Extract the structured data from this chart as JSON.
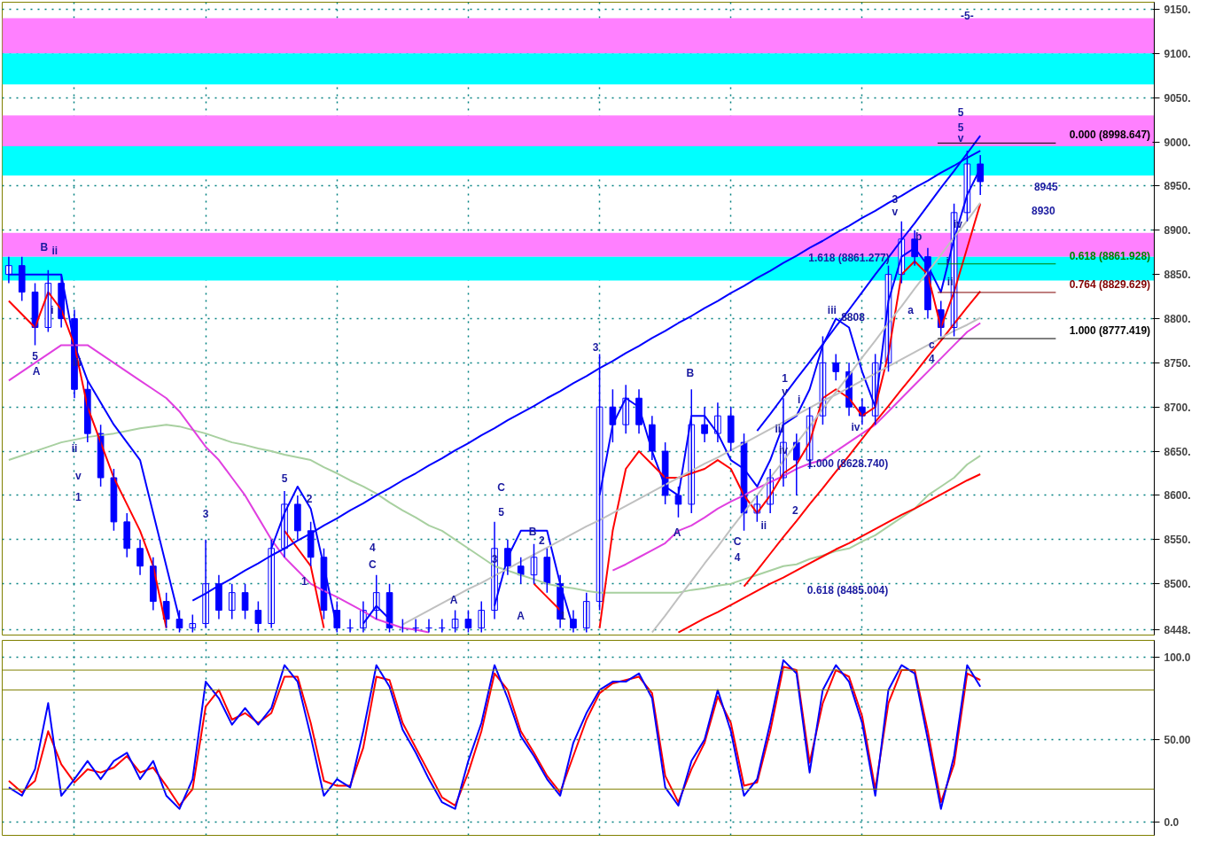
{
  "chart_data": [
    {
      "type": "candlestick",
      "color": "#0000ff",
      "grid": true,
      "tick_labels": "y",
      "ylim": [
        8442,
        9158
      ],
      "yticks": [
        {
          "value": 8500,
          "label": "8500."
        },
        {
          "value": 8550,
          "label": "8550."
        },
        {
          "value": 8600,
          "label": "8600."
        },
        {
          "value": 8650,
          "label": "8650."
        },
        {
          "value": 8700,
          "label": "8700."
        },
        {
          "value": 8750,
          "label": "8750."
        },
        {
          "value": 8800,
          "label": "8800."
        },
        {
          "value": 8850,
          "label": "8850."
        },
        {
          "value": 8900,
          "label": "8900."
        },
        {
          "value": 8950,
          "label": "8950."
        },
        {
          "value": 9000,
          "label": "9000."
        },
        {
          "value": 9050,
          "label": "9050."
        },
        {
          "value": 9100,
          "label": "9100."
        },
        {
          "value": 9150,
          "label": "9150."
        },
        {
          "value": 8448,
          "label": "8448."
        }
      ],
      "categories": [
        null,
        null,
        null,
        null,
        null,
        null,
        null,
        null,
        null,
        null,
        null,
        null,
        null,
        null,
        null,
        null,
        null,
        null,
        null,
        null,
        null,
        null,
        null,
        null,
        null,
        null,
        null,
        null,
        null,
        null,
        null,
        null,
        null,
        null,
        null,
        null,
        null,
        null,
        null,
        null,
        null,
        null,
        null,
        null,
        null,
        null,
        null,
        null,
        null,
        null,
        null,
        null,
        null,
        null,
        null,
        null,
        null,
        null,
        null,
        null,
        null,
        null,
        null,
        null,
        null,
        null,
        null,
        null,
        null,
        null,
        null,
        null,
        null,
        null,
        null
      ],
      "ohlc": [
        [
          8850,
          8870,
          8840,
          8860
        ],
        [
          8860,
          8870,
          8820,
          8830
        ],
        [
          8830,
          8840,
          8770,
          8790
        ],
        [
          8790,
          8855,
          8785,
          8840
        ],
        [
          8840,
          8850,
          8790,
          8800
        ],
        [
          8800,
          8810,
          8710,
          8720
        ],
        [
          8720,
          8730,
          8660,
          8670
        ],
        [
          8670,
          8680,
          8610,
          8620
        ],
        [
          8620,
          8630,
          8560,
          8570
        ],
        [
          8570,
          8580,
          8530,
          8540
        ],
        [
          8540,
          8550,
          8510,
          8520
        ],
        [
          8520,
          8530,
          8470,
          8480
        ],
        [
          8480,
          8490,
          8450,
          8460
        ],
        [
          8460,
          8470,
          8445,
          8450
        ],
        [
          8450,
          8465,
          8445,
          8455
        ],
        [
          8455,
          8550,
          8450,
          8500
        ],
        [
          8500,
          8510,
          8460,
          8470
        ],
        [
          8470,
          8500,
          8460,
          8490
        ],
        [
          8490,
          8500,
          8460,
          8470
        ],
        [
          8470,
          8480,
          8445,
          8455
        ],
        [
          8455,
          8550,
          8450,
          8540
        ],
        [
          8540,
          8605,
          8530,
          8590
        ],
        [
          8590,
          8600,
          8550,
          8560
        ],
        [
          8560,
          8570,
          8520,
          8530
        ],
        [
          8530,
          8540,
          8460,
          8470
        ],
        [
          8470,
          8480,
          8445,
          8450
        ],
        [
          8450,
          8460,
          8445,
          8450
        ],
        [
          8450,
          8480,
          8445,
          8470
        ],
        [
          8470,
          8510,
          8460,
          8490
        ],
        [
          8490,
          8500,
          8445,
          8450
        ],
        [
          8450,
          8460,
          8445,
          8450
        ],
        [
          8450,
          8460,
          8445,
          8450
        ],
        [
          8450,
          8460,
          8445,
          8450
        ],
        [
          8450,
          8460,
          8445,
          8450
        ],
        [
          8450,
          8470,
          8445,
          8460
        ],
        [
          8460,
          8470,
          8445,
          8450
        ],
        [
          8450,
          8480,
          8445,
          8470
        ],
        [
          8470,
          8570,
          8460,
          8540
        ],
        [
          8540,
          8550,
          8510,
          8520
        ],
        [
          8520,
          8530,
          8500,
          8510
        ],
        [
          8510,
          8545,
          8500,
          8530
        ],
        [
          8530,
          8540,
          8490,
          8500
        ],
        [
          8500,
          8510,
          8450,
          8460
        ],
        [
          8460,
          8470,
          8445,
          8450
        ],
        [
          8450,
          8490,
          8445,
          8480
        ],
        [
          8480,
          8760,
          8470,
          8700
        ],
        [
          8700,
          8720,
          8660,
          8680
        ],
        [
          8680,
          8725,
          8670,
          8710
        ],
        [
          8710,
          8720,
          8670,
          8680
        ],
        [
          8680,
          8690,
          8640,
          8650
        ],
        [
          8650,
          8660,
          8590,
          8600
        ],
        [
          8600,
          8610,
          8575,
          8590
        ],
        [
          8590,
          8720,
          8580,
          8680
        ],
        [
          8680,
          8700,
          8660,
          8670
        ],
        [
          8670,
          8705,
          8660,
          8690
        ],
        [
          8690,
          8700,
          8650,
          8660
        ],
        [
          8660,
          8670,
          8560,
          8580
        ],
        [
          8580,
          8600,
          8570,
          8590
        ],
        [
          8590,
          8630,
          8580,
          8620
        ],
        [
          8620,
          8710,
          8610,
          8660
        ],
        [
          8660,
          8670,
          8600,
          8640
        ],
        [
          8640,
          8700,
          8630,
          8690
        ],
        [
          8690,
          8780,
          8680,
          8750
        ],
        [
          8750,
          8760,
          8730,
          8740
        ],
        [
          8740,
          8750,
          8690,
          8700
        ],
        [
          8700,
          8710,
          8680,
          8690
        ],
        [
          8690,
          8760,
          8680,
          8750
        ],
        [
          8750,
          8860,
          8740,
          8850
        ],
        [
          8850,
          8910,
          8840,
          8890
        ],
        [
          8890,
          8900,
          8860,
          8870
        ],
        [
          8870,
          8880,
          8800,
          8810
        ],
        [
          8810,
          8820,
          8780,
          8790
        ],
        [
          8790,
          8930,
          8780,
          8920
        ],
        [
          8920,
          8990,
          8910,
          8975
        ],
        [
          8975,
          8985,
          8940,
          8955
        ]
      ],
      "series": [
        {
          "type": "line",
          "color": "#a8d0a0",
          "values": [
            8640,
            8645,
            8650,
            8655,
            8660,
            8663,
            8666,
            8668,
            8670,
            8673,
            8676,
            8678,
            8680,
            8678,
            8674,
            8670,
            8665,
            8660,
            8657,
            8653,
            8650,
            8646,
            8643,
            8640,
            8632,
            8625,
            8617,
            8610,
            8602,
            8592,
            8583,
            8575,
            8566,
            8560,
            8550,
            8540,
            8530,
            8520,
            8515,
            8510,
            8505,
            8500,
            8497,
            8495,
            8492,
            8490,
            8490,
            8490,
            8490,
            8490,
            8490,
            8490,
            8493,
            8495,
            8498,
            8500,
            8505,
            8510,
            8515,
            8520,
            8522,
            8528,
            8532,
            8537,
            8540,
            8548,
            8555,
            8565,
            8575,
            8585,
            8600,
            8610,
            8620,
            8635,
            8645
          ]
        },
        {
          "type": "line",
          "color": "#e040e0",
          "values": [
            8730,
            8740,
            8750,
            8760,
            8770,
            8770,
            8770,
            8760,
            8750,
            8740,
            8730,
            8720,
            8710,
            8695,
            8675,
            8655,
            8640,
            8620,
            8600,
            8575,
            8550,
            8530,
            8515,
            8500,
            8492,
            8485,
            8477,
            8469,
            8460,
            8455,
            8450,
            8448,
            8445,
            null,
            null,
            null,
            null,
            null,
            null,
            null,
            null,
            null,
            null,
            null,
            null,
            null,
            8515,
            8522,
            8530,
            8538,
            8546,
            8560,
            8566,
            8575,
            8585,
            8593,
            8600,
            8608,
            8615,
            8622,
            8630,
            8636,
            8640,
            8650,
            8660,
            8670,
            8680,
            8695,
            8710,
            8725,
            8740,
            8755,
            8770,
            8785,
            8795
          ]
        },
        {
          "type": "line",
          "color": "#0000ff",
          "values": [
            8850,
            8850,
            8850,
            8850,
            8850,
            8770,
            8730,
            8705,
            8680,
            8660,
            8640,
            8580,
            8520,
            8460,
            null,
            null,
            null,
            null,
            null,
            null,
            8540,
            8580,
            8610,
            8585,
            8520,
            8450,
            null,
            8455,
            8475,
            8460,
            null,
            null,
            null,
            null,
            null,
            null,
            null,
            8475,
            8530,
            8560,
            8560,
            8560,
            8500,
            8450,
            null,
            8600,
            8680,
            8710,
            8700,
            8650,
            8610,
            8600,
            8690,
            8690,
            8670,
            8640,
            8630,
            8610,
            8640,
            8680,
            8690,
            8720,
            8770,
            8800,
            8790,
            8740,
            8700,
            8820,
            8870,
            8880,
            8860,
            8830,
            8890,
            8940,
            8970
          ]
        },
        {
          "type": "line",
          "color": "#ff0000",
          "values": [
            8820,
            8805,
            8790,
            8830,
            8810,
            8770,
            8700,
            8660,
            8620,
            8590,
            8560,
            8520,
            8450,
            null,
            null,
            null,
            null,
            null,
            null,
            null,
            null,
            8560,
            8540,
            8520,
            8450,
            null,
            null,
            null,
            null,
            null,
            null,
            null,
            null,
            null,
            null,
            null,
            null,
            null,
            null,
            null,
            8500,
            8485,
            8470,
            null,
            null,
            8450,
            8560,
            8630,
            8650,
            8635,
            8620,
            8620,
            8625,
            8630,
            8640,
            8630,
            8600,
            8580,
            8600,
            8625,
            8635,
            8660,
            8710,
            8720,
            8710,
            8690,
            8700,
            8760,
            8850,
            8865,
            8850,
            8790,
            8830,
            8880,
            8930
          ]
        },
        {
          "type": "line",
          "color": "#0000ff",
          "values": [
            null,
            null,
            null,
            null,
            null,
            null,
            null,
            null,
            null,
            null,
            null,
            null,
            null,
            null,
            8481,
            8489,
            8498,
            8506,
            8515,
            8523,
            8532,
            8540,
            8549,
            8557,
            8566,
            8574,
            8583,
            8591,
            8600,
            8608,
            8617,
            8625,
            8634,
            8642,
            8651,
            8659,
            8668,
            8676,
            8685,
            8693,
            8701,
            8710,
            8718,
            8727,
            8735,
            8744,
            8752,
            8761,
            8769,
            8778,
            8786,
            8795,
            8803,
            8812,
            8820,
            8829,
            8837,
            8846,
            8854,
            8863,
            8871,
            8880,
            8888,
            8897,
            8905,
            8914,
            8922,
            8931,
            8939,
            8948,
            8956,
            8965,
            8973,
            8982,
            8990
          ]
        },
        {
          "type": "line",
          "color": "#0000ff",
          "values": [
            null,
            null,
            null,
            null,
            null,
            null,
            null,
            null,
            null,
            null,
            null,
            null,
            null,
            null,
            null,
            null,
            null,
            null,
            null,
            null,
            null,
            null,
            null,
            null,
            null,
            null,
            null,
            null,
            null,
            null,
            null,
            null,
            null,
            null,
            null,
            null,
            null,
            null,
            null,
            null,
            null,
            null,
            null,
            null,
            null,
            null,
            null,
            null,
            null,
            null,
            null,
            null,
            null,
            null,
            null,
            null,
            null,
            8673,
            8692,
            8712,
            8732,
            8751,
            8771,
            8791,
            8810,
            8830,
            8850,
            8869,
            8889,
            8908,
            8928,
            8948,
            8967,
            8987,
            9007
          ]
        },
        {
          "type": "line",
          "color": "#ff0000",
          "values": [
            null,
            null,
            null,
            null,
            null,
            null,
            null,
            null,
            null,
            null,
            null,
            null,
            null,
            null,
            null,
            null,
            null,
            null,
            null,
            null,
            null,
            null,
            null,
            null,
            null,
            null,
            null,
            null,
            null,
            null,
            null,
            null,
            null,
            null,
            null,
            null,
            null,
            null,
            null,
            null,
            null,
            null,
            null,
            null,
            null,
            null,
            null,
            null,
            null,
            null,
            null,
            null,
            null,
            null,
            null,
            null,
            8497,
            8515,
            8534,
            8553,
            8571,
            8590,
            8608,
            8627,
            8645,
            8664,
            8683,
            8701,
            8720,
            8738,
            8757,
            8775,
            8794,
            8813,
            8831
          ]
        },
        {
          "type": "line",
          "color": "#ff0000",
          "values": [
            null,
            null,
            null,
            null,
            null,
            null,
            null,
            null,
            null,
            null,
            null,
            null,
            null,
            null,
            null,
            null,
            null,
            null,
            null,
            null,
            null,
            null,
            null,
            null,
            null,
            null,
            null,
            null,
            null,
            null,
            null,
            null,
            null,
            null,
            null,
            null,
            null,
            null,
            null,
            null,
            null,
            null,
            null,
            null,
            null,
            null,
            null,
            null,
            null,
            null,
            null,
            8445,
            8453,
            8461,
            8468,
            8476,
            8484,
            8492,
            8500,
            8507,
            8515,
            8523,
            8531,
            8539,
            8546,
            8554,
            8562,
            8570,
            8578,
            8585,
            8593,
            8601,
            8609,
            8617,
            8624
          ]
        },
        {
          "type": "line",
          "color": "#c0c0c0",
          "values": [
            null,
            null,
            null,
            null,
            null,
            null,
            null,
            null,
            null,
            null,
            null,
            null,
            null,
            null,
            null,
            null,
            null,
            null,
            null,
            null,
            null,
            null,
            null,
            null,
            null,
            null,
            null,
            null,
            null,
            null,
            null,
            null,
            null,
            null,
            null,
            null,
            null,
            null,
            null,
            null,
            null,
            null,
            null,
            null,
            null,
            null,
            null,
            null,
            null,
            8445,
            8464,
            8484,
            8503,
            8523,
            8542,
            8562,
            8581,
            8600,
            8620,
            8639,
            8659,
            8678,
            8698,
            8717,
            8736,
            8756,
            8775,
            8795,
            8814,
            8834,
            8853,
            8872,
            8892,
            8911,
            8931
          ]
        },
        {
          "type": "line",
          "color": "#c0c0c0",
          "values": [
            null,
            null,
            null,
            null,
            null,
            null,
            null,
            null,
            null,
            null,
            null,
            null,
            null,
            null,
            null,
            null,
            null,
            null,
            null,
            null,
            null,
            null,
            null,
            null,
            null,
            null,
            null,
            null,
            null,
            null,
            8454,
            8462,
            8470,
            8478,
            8486,
            8494,
            8501,
            8509,
            8517,
            8525,
            8533,
            8541,
            8549,
            8557,
            8565,
            8572,
            8580,
            8588,
            8596,
            8604,
            8612,
            8620,
            8628,
            8636,
            8643,
            8651,
            8659,
            8667,
            8675,
            8683,
            8691,
            8699,
            8707,
            8714,
            8722,
            8730,
            8738,
            8746,
            8754,
            8762,
            8770,
            8778,
            8786,
            8793,
            8801
          ]
        }
      ],
      "bands": [
        {
          "axis": "y",
          "from": 9100,
          "to": 9140,
          "color": "#ff80ff"
        },
        {
          "axis": "y",
          "from": 9065,
          "to": 9100,
          "color": "#00ffff"
        },
        {
          "axis": "y",
          "from": 8995,
          "to": 9030,
          "color": "#ff80ff"
        },
        {
          "axis": "y",
          "from": 8962,
          "to": 8995,
          "color": "#00ffff"
        },
        {
          "axis": "y",
          "from": 8870,
          "to": 8897,
          "color": "#ff80ff"
        },
        {
          "axis": "y",
          "from": 8843,
          "to": 8870,
          "color": "#00ffff"
        }
      ],
      "ref_lines": [
        {
          "axis": "y",
          "value": 8998.647,
          "label": "0.000 (8998.647)",
          "color": "#000000"
        },
        {
          "axis": "y",
          "value": 8861.928,
          "label": "0.618 (8861.928)",
          "color": "#008000"
        },
        {
          "axis": "y",
          "value": 8829.629,
          "label": "0.764 (8829.629)",
          "color": "#800000"
        },
        {
          "axis": "y",
          "value": 8777.419,
          "label": "1.000 (8777.419)",
          "color": "#000000"
        }
      ],
      "annotations": [
        "B",
        "A",
        "5",
        "ii",
        "i",
        "iii",
        "ii",
        "v",
        "1",
        "3",
        "5",
        "2",
        "1",
        "4",
        "C",
        "A",
        "C",
        "5",
        "3",
        "B",
        "2",
        "A",
        "1",
        "3",
        "B",
        "A",
        "C",
        "4",
        "ii",
        "2",
        "1",
        "v",
        "iii",
        "iv",
        "i",
        "iii",
        "8808",
        "iv",
        "3",
        "v",
        "b",
        "a",
        "c",
        "4",
        "i",
        "ii",
        "iv",
        "5",
        "5",
        "v",
        "-5-",
        "8945",
        "8930",
        "1.618 (8861.277)",
        "1.000 (8628.740)",
        "0.618 (8485.004)"
      ]
    },
    {
      "type": "line",
      "grid": true,
      "tick_labels": "y",
      "ylim": [
        -8,
        110
      ],
      "yticks": [
        {
          "value": 0,
          "label": "0.0"
        },
        {
          "value": 50,
          "label": "50.00"
        },
        {
          "value": 100,
          "label": "100.0"
        }
      ],
      "categories": [
        null,
        null,
        null,
        null,
        null,
        null,
        null,
        null,
        null,
        null,
        null,
        null,
        null,
        null,
        null,
        null,
        null,
        null,
        null,
        null,
        null,
        null,
        null,
        null,
        null,
        null,
        null,
        null,
        null,
        null,
        null,
        null,
        null,
        null,
        null,
        null,
        null,
        null,
        null,
        null,
        null,
        null,
        null,
        null,
        null,
        null,
        null,
        null,
        null,
        null,
        null,
        null,
        null,
        null,
        null,
        null,
        null,
        null,
        null,
        null,
        null,
        null,
        null,
        null,
        null,
        null,
        null,
        null,
        null,
        null,
        null,
        null,
        null,
        null,
        null
      ],
      "series": [
        {
          "color": "#ff0000",
          "values": [
            25,
            18,
            25,
            55,
            35,
            24,
            32,
            30,
            33,
            40,
            30,
            33,
            22,
            10,
            20,
            70,
            80,
            62,
            66,
            60,
            66,
            88,
            88,
            60,
            25,
            22,
            22,
            45,
            88,
            86,
            60,
            45,
            30,
            15,
            10,
            30,
            55,
            90,
            80,
            55,
            42,
            28,
            18,
            40,
            62,
            78,
            84,
            86,
            88,
            78,
            28,
            12,
            32,
            48,
            76,
            60,
            22,
            24,
            55,
            94,
            92,
            36,
            72,
            92,
            88,
            64,
            20,
            72,
            92,
            92,
            55,
            12,
            35,
            90,
            86
          ]
        },
        {
          "color": "#0000ff",
          "values": [
            21,
            16,
            32,
            72,
            16,
            26,
            37,
            26,
            37,
            42,
            26,
            37,
            16,
            8,
            26,
            85,
            75,
            59,
            69,
            59,
            69,
            95,
            85,
            52,
            16,
            26,
            21,
            55,
            95,
            82,
            56,
            42,
            26,
            12,
            8,
            37,
            60,
            95,
            75,
            52,
            40,
            26,
            16,
            48,
            66,
            80,
            85,
            85,
            90,
            75,
            21,
            10,
            37,
            50,
            80,
            55,
            16,
            26,
            60,
            98,
            90,
            30,
            80,
            95,
            85,
            60,
            16,
            80,
            95,
            90,
            50,
            8,
            40,
            95,
            82
          ]
        }
      ],
      "ref_lines": [
        {
          "axis": "y",
          "value": 92,
          "color": "#808000"
        },
        {
          "axis": "y",
          "value": 80,
          "color": "#808000"
        },
        {
          "axis": "y",
          "value": 20,
          "color": "#808000"
        }
      ]
    }
  ]
}
